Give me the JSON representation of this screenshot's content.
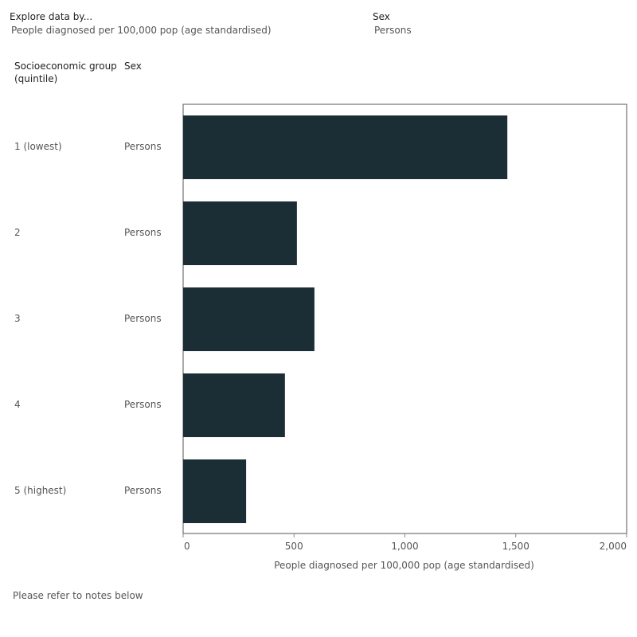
{
  "filters": {
    "explore": {
      "label": "Explore data by...",
      "value": "People diagnosed per 100,000 pop (age standardised)"
    },
    "sex": {
      "label": "Sex",
      "value": "Persons"
    }
  },
  "table_headers": {
    "group": "Socioeconomic group\n(quintile)",
    "sex": "Sex"
  },
  "footer_note": "Please refer to notes below",
  "colors": {
    "bar": "#1b2e35",
    "axis": "#888888",
    "frame": "#555555"
  },
  "chart_data": {
    "type": "bar",
    "orientation": "horizontal",
    "categories": [
      "1 (lowest)",
      "2",
      "3",
      "4",
      "5 (highest)"
    ],
    "sex_labels": [
      "Persons",
      "Persons",
      "Persons",
      "Persons",
      "Persons"
    ],
    "values": [
      1462,
      513,
      592,
      459,
      284
    ],
    "xlabel": "People diagnosed per 100,000 pop (age standardised)",
    "xlim": [
      0,
      2000
    ],
    "xticks": [
      0,
      500,
      1000,
      1500,
      2000
    ],
    "xtick_labels": [
      "0",
      "500",
      "1,000",
      "1,500",
      "2,000"
    ],
    "grid": false
  }
}
